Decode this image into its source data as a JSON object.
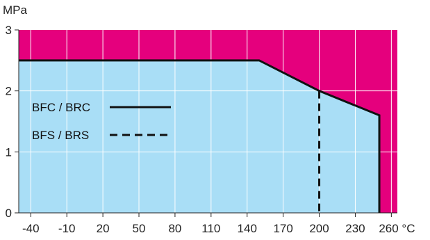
{
  "chart_data": {
    "type": "area",
    "ylabel": "MPa",
    "xunit": "°C",
    "xlim": [
      -50,
      265
    ],
    "ylim": [
      0,
      3
    ],
    "x_ticks": [
      -40,
      -10,
      20,
      50,
      80,
      110,
      140,
      170,
      200,
      230,
      260
    ],
    "x_tick_labels": [
      "-40",
      "-10",
      "20",
      "50",
      "80",
      "110",
      "140",
      "170",
      "200",
      "230",
      "260 °C"
    ],
    "y_ticks": [
      0,
      1,
      2,
      3
    ],
    "y_tick_labels": [
      "0",
      "1",
      "2",
      "3"
    ],
    "grid": true,
    "legend_position": "left",
    "series": [
      {
        "name": "BFC / BRC",
        "style": "solid",
        "x": [
          -50,
          150,
          200,
          250,
          250
        ],
        "y": [
          2.5,
          2.5,
          2.0,
          1.6,
          0
        ]
      },
      {
        "name": "BFS / BRS",
        "style": "dashed",
        "x": [
          200,
          200
        ],
        "y": [
          2.0,
          0
        ]
      }
    ],
    "regions": {
      "allowed": {
        "color": "#a9def6"
      },
      "outside": {
        "color": "#e5007d"
      }
    },
    "colors": {
      "grid": "#ffffff",
      "line": "#111111",
      "axis": "#222222"
    }
  }
}
